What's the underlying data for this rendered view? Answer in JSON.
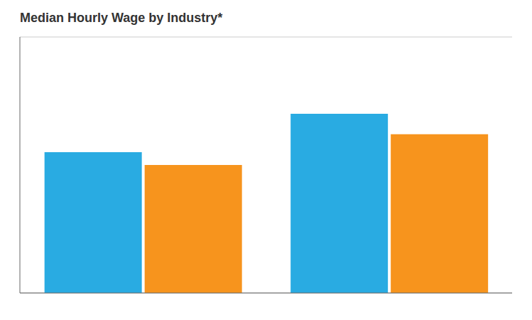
{
  "chart_data": {
    "type": "bar",
    "title": "Median Hourly Wage by Industry*",
    "categories": [
      null,
      null
    ],
    "series": [
      {
        "color": "#29ABE2",
        "values": [
          55,
          70
        ]
      },
      {
        "color": "#F7941D",
        "values": [
          50,
          62
        ]
      }
    ],
    "ylim": [
      0,
      100
    ],
    "yticks": [
      0,
      16.666666666666668,
      33.333333333333336,
      50,
      66.66666666666667,
      83.33333333333334,
      100
    ],
    "grid": true,
    "tick_labels": false
  }
}
